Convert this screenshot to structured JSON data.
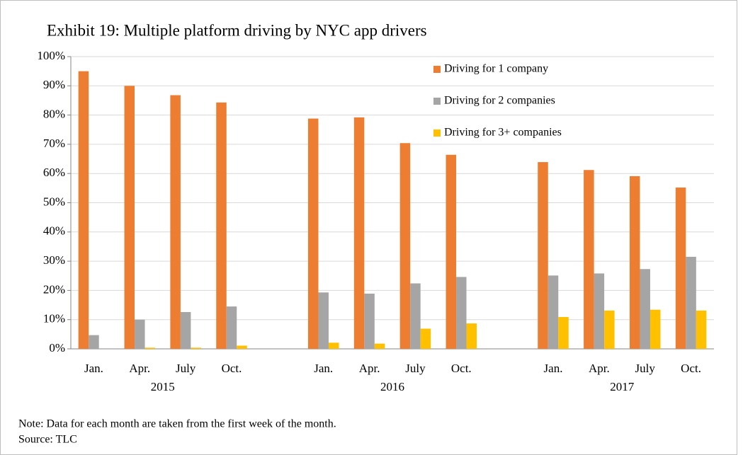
{
  "chart_data": {
    "type": "bar",
    "title": "Exhibit 19: Multiple  platform driving  by NYC app drivers",
    "categories": [
      "Jan.",
      "Apr.",
      "July",
      "Oct.",
      null,
      "Jan.",
      "Apr.",
      "July",
      "Oct.",
      null,
      "Jan.",
      "Apr.",
      "July",
      "Oct."
    ],
    "years": [
      "2015",
      "2016",
      "2017"
    ],
    "series": [
      {
        "name": "Driving for 1 company",
        "color": "#ed7d31",
        "values": [
          95,
          90,
          86.8,
          84.3,
          null,
          78.8,
          79.2,
          70.4,
          66.4,
          null,
          63.9,
          61.2,
          59.1,
          55.2
        ]
      },
      {
        "name": "Driving for 2 companies",
        "color": "#a5a5a5",
        "values": [
          4.7,
          10,
          12.6,
          14.5,
          null,
          19.3,
          18.9,
          22.4,
          24.6,
          null,
          25.1,
          25.8,
          27.3,
          31.5
        ]
      },
      {
        "name": "Driving for 3+ companies",
        "color": "#ffc000",
        "values": [
          0,
          0.4,
          0.4,
          1.1,
          null,
          2.1,
          1.8,
          6.9,
          8.7,
          null,
          10.9,
          13.1,
          13.4,
          13.1
        ]
      }
    ],
    "ylim": [
      0,
      100
    ],
    "yticks": [
      {
        "value": 0,
        "label": "0%"
      },
      {
        "value": 10,
        "label": "10%"
      },
      {
        "value": 20,
        "label": "20%"
      },
      {
        "value": 30,
        "label": "30%"
      },
      {
        "value": 40,
        "label": "40%"
      },
      {
        "value": 50,
        "label": "50%"
      },
      {
        "value": 60,
        "label": "60%"
      },
      {
        "value": 70,
        "label": "70%"
      },
      {
        "value": 80,
        "label": "80%"
      },
      {
        "value": 90,
        "label": "90%"
      },
      {
        "value": 100,
        "label": "100%"
      }
    ],
    "grid": true,
    "legend": "upper right",
    "note": "Note: Data for each month are taken from the first week of the month.",
    "source": "Source: TLC"
  }
}
